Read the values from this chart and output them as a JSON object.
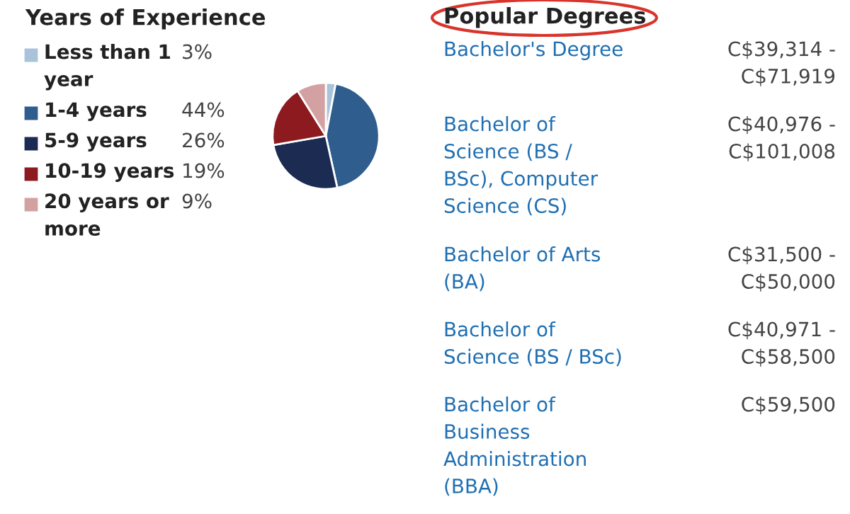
{
  "chart_data": [
    {
      "type": "pie",
      "title": "Years of Experience",
      "legend": "left",
      "value_labels": [
        "3%",
        "44%",
        "26%",
        "19%",
        "9%"
      ],
      "categories": [
        "Less than 1 year",
        "1-4 years",
        "5-9 years",
        "10-19 years",
        "20 years or more"
      ],
      "values": [
        3,
        44,
        26,
        19,
        9
      ],
      "colors": [
        "#a9c3da",
        "#2f5d8e",
        "#1b2b52",
        "#8c1a1e",
        "#d3a1a1"
      ]
    },
    {
      "type": "other",
      "title": "Popular Degrees",
      "categories": [
        "Bachelor's Degree",
        "Bachelor of Science (BS / BSc), Computer Science (CS)",
        "Bachelor of Arts (BA)",
        "Bachelor of Science (BS / BSc)",
        "Bachelor of Business Administration (BBA)"
      ],
      "annotations": [
        "C$39,314 - C$71,919",
        "C$40,976 - C$101,008",
        "C$31,500 - C$50,000",
        "C$40,971 - C$58,500",
        "C$59,500"
      ]
    }
  ]
}
